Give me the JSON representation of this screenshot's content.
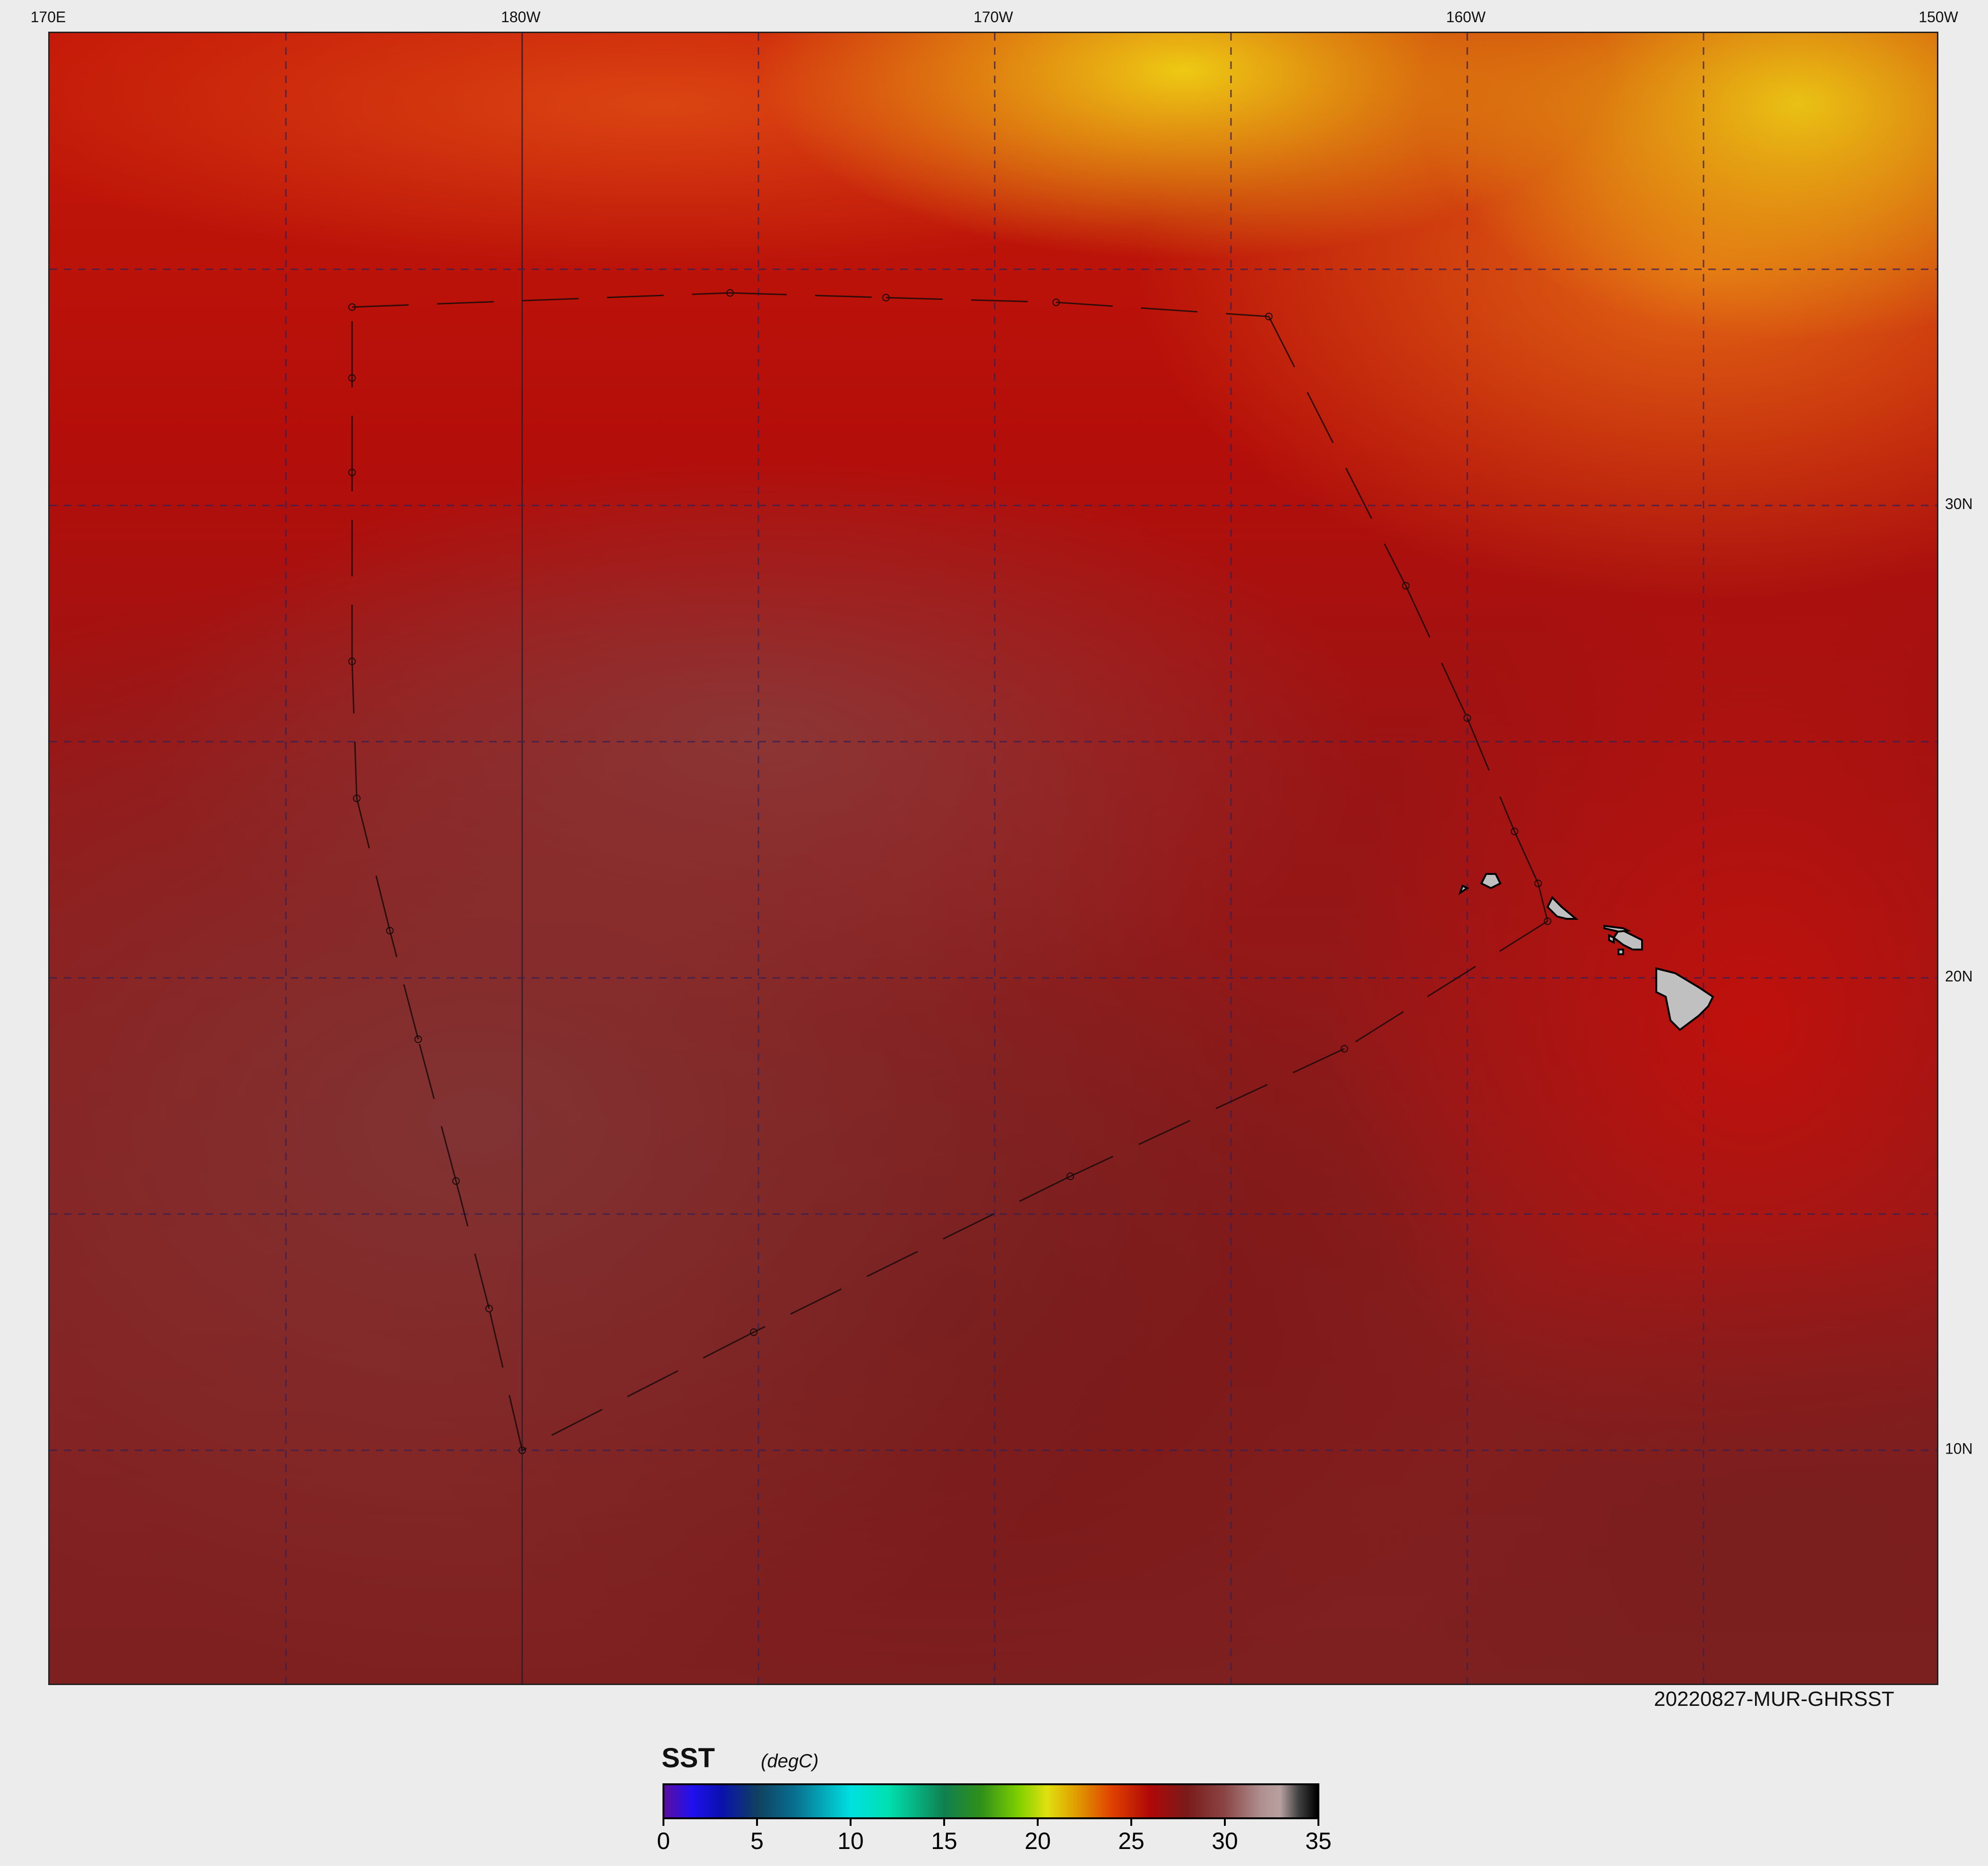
{
  "map": {
    "type": "sea-surface-temperature map",
    "extent": {
      "lon_min_east": 170,
      "lon_max_east": 210,
      "lat_min": 5,
      "lat_max": 40
    },
    "grid_step_degrees": 5,
    "grid_line_style": "dashed",
    "lon_labels": [
      {
        "lon_east": 170,
        "text": "170E"
      },
      {
        "lon_east": 180,
        "text": "180W"
      },
      {
        "lon_east": 190,
        "text": "170W"
      },
      {
        "lon_east": 200,
        "text": "160W"
      },
      {
        "lon_east": 210,
        "text": "150W"
      }
    ],
    "lat_labels": [
      {
        "lat": 30,
        "text": "30N"
      },
      {
        "lat": 20,
        "text": "20N"
      },
      {
        "lat": 10,
        "text": "10N"
      }
    ],
    "product_label": "20220827-MUR-GHRSST",
    "land_color": "#c0c0c0",
    "track": [
      [
        176.4,
        34.2
      ],
      [
        184.4,
        34.5
      ],
      [
        187.7,
        34.4
      ],
      [
        191.3,
        34.3
      ],
      [
        195.8,
        34.0
      ],
      [
        198.7,
        28.3
      ],
      [
        200.0,
        25.5
      ],
      [
        201.0,
        23.1
      ],
      [
        201.5,
        22.0
      ],
      [
        201.7,
        21.2
      ],
      [
        197.4,
        18.5
      ],
      [
        191.6,
        15.8
      ],
      [
        184.9,
        12.5
      ],
      [
        180.0,
        10.0
      ],
      [
        179.3,
        13.0
      ],
      [
        178.6,
        15.7
      ],
      [
        177.8,
        18.7
      ],
      [
        177.2,
        21.0
      ],
      [
        176.5,
        23.8
      ],
      [
        176.4,
        26.7
      ],
      [
        176.4,
        30.7
      ],
      [
        176.4,
        32.7
      ],
      [
        176.4,
        34.2
      ]
    ]
  },
  "colorbar": {
    "title": "SST",
    "units": "(degC)",
    "min": 0,
    "max": 35,
    "ticks": [
      "0",
      "5",
      "10",
      "15",
      "20",
      "25",
      "30",
      "35"
    ],
    "stops": [
      [
        0,
        "#5a0fa0"
      ],
      [
        1.5,
        "#2010f0"
      ],
      [
        3,
        "#0a10b0"
      ],
      [
        5,
        "#104060"
      ],
      [
        7,
        "#087090"
      ],
      [
        10,
        "#00e0e0"
      ],
      [
        12,
        "#00e0b0"
      ],
      [
        15,
        "#108050"
      ],
      [
        17,
        "#309018"
      ],
      [
        19,
        "#80d000"
      ],
      [
        20.5,
        "#e0e010"
      ],
      [
        22,
        "#e0a000"
      ],
      [
        24,
        "#e04000"
      ],
      [
        26,
        "#b00808"
      ],
      [
        28,
        "#7a1a1a"
      ],
      [
        30,
        "#8a4444"
      ],
      [
        32,
        "#b09090"
      ],
      [
        33,
        "#b8a0a0"
      ],
      [
        34,
        "#404040"
      ],
      [
        35,
        "#000000"
      ]
    ]
  }
}
